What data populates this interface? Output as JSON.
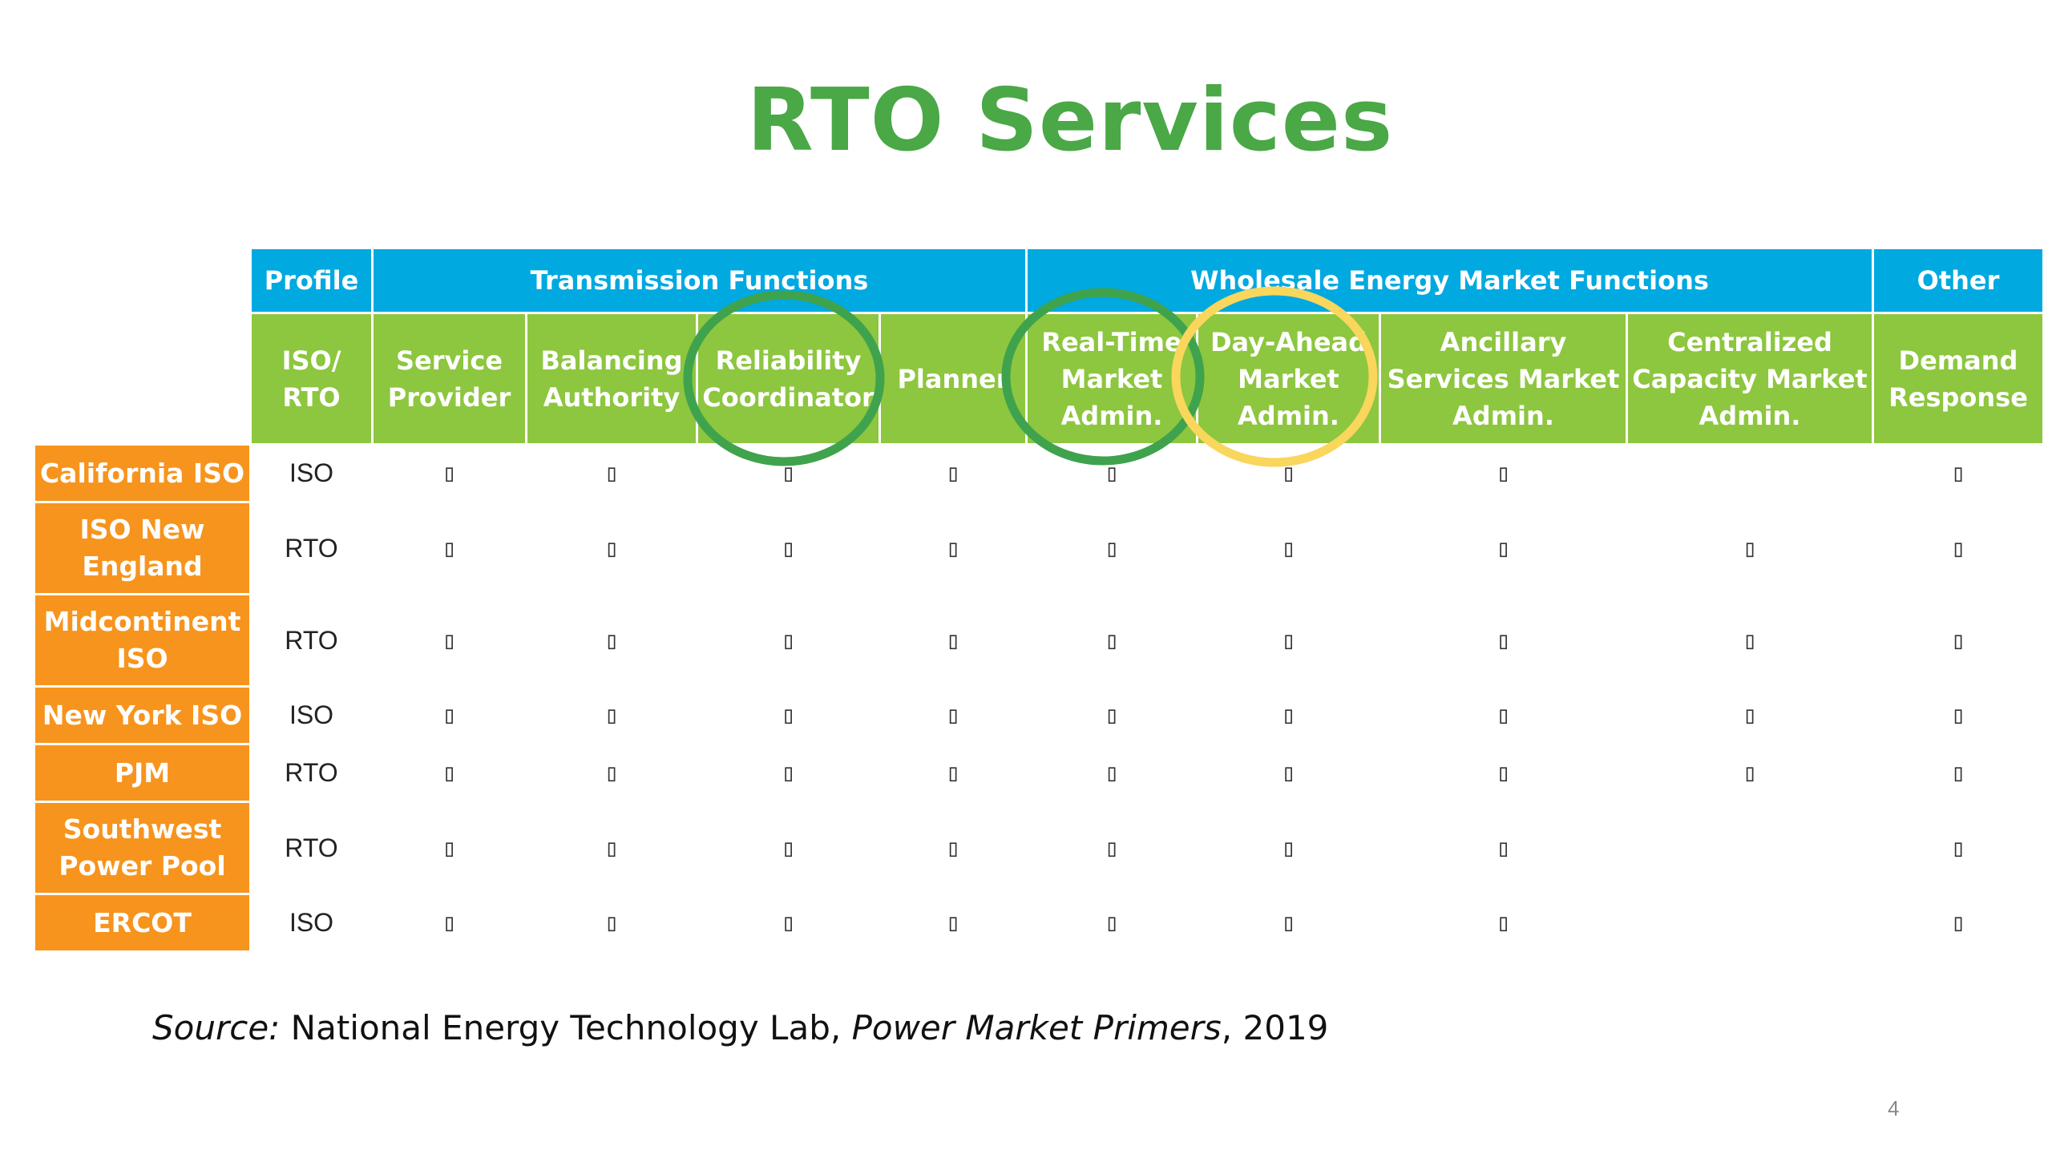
{
  "title": "RTO Services",
  "groups": [
    {
      "label": "Profile"
    },
    {
      "label": "Transmission Functions"
    },
    {
      "label": "Wholesale Energy Market Functions"
    },
    {
      "label": "Other"
    }
  ],
  "columns": [
    {
      "line1": "ISO/",
      "line2": "RTO",
      "line3": ""
    },
    {
      "line1": "Service",
      "line2": "Provider",
      "line3": ""
    },
    {
      "line1": "Balancing",
      "line2": "Authority",
      "line3": ""
    },
    {
      "line1": "Reliability",
      "line2": "Coordinator",
      "line3": ""
    },
    {
      "line1": "Planner",
      "line2": "",
      "line3": ""
    },
    {
      "line1": "Real-Time",
      "line2": "Market",
      "line3": "Admin."
    },
    {
      "line1": "Day-Ahead",
      "line2": "Market",
      "line3": "Admin."
    },
    {
      "line1": "Ancillary",
      "line2": "Services Market",
      "line3": "Admin."
    },
    {
      "line1": "Centralized",
      "line2": "Capacity Market",
      "line3": "Admin."
    },
    {
      "line1": "Demand",
      "line2": "Response",
      "line3": ""
    }
  ],
  "mark_glyph": "▯",
  "rows": [
    {
      "line1": "California ISO",
      "line2": "",
      "profile": "ISO",
      "c": [
        "▯",
        "▯",
        "▯",
        "▯",
        "▯",
        "▯",
        "▯",
        "",
        "▯"
      ]
    },
    {
      "line1": "ISO New",
      "line2": "England",
      "profile": "RTO",
      "c": [
        "▯",
        "▯",
        "▯",
        "▯",
        "▯",
        "▯",
        "▯",
        "▯",
        "▯"
      ]
    },
    {
      "line1": "Midcontinent",
      "line2": "ISO",
      "profile": "RTO",
      "c": [
        "▯",
        "▯",
        "▯",
        "▯",
        "▯",
        "▯",
        "▯",
        "▯",
        "▯"
      ]
    },
    {
      "line1": "New York ISO",
      "line2": "",
      "profile": "ISO",
      "c": [
        "▯",
        "▯",
        "▯",
        "▯",
        "▯",
        "▯",
        "▯",
        "▯",
        "▯"
      ]
    },
    {
      "line1": "PJM",
      "line2": "",
      "profile": "RTO",
      "c": [
        "▯",
        "▯",
        "▯",
        "▯",
        "▯",
        "▯",
        "▯",
        "▯",
        "▯"
      ]
    },
    {
      "line1": "Southwest",
      "line2": "Power Pool",
      "profile": "RTO",
      "c": [
        "▯",
        "▯",
        "▯",
        "▯",
        "▯",
        "▯",
        "▯",
        "",
        "▯"
      ]
    },
    {
      "line1": "ERCOT",
      "line2": "",
      "profile": "ISO",
      "c": [
        "▯",
        "▯",
        "▯",
        "▯",
        "▯",
        "▯",
        "▯",
        "",
        "▯"
      ]
    }
  ],
  "source": {
    "label": "Source:",
    "org": " National Energy Technology Lab, ",
    "publication": "Power Market Primers",
    "year": ", 2019"
  },
  "page_number": "4",
  "colors": {
    "title": "#4aa846",
    "group_header": "#00a9e0",
    "column_header": "#8dc63f",
    "row_header": "#f7941d",
    "circle_green": "#3fa34d",
    "circle_yellow": "#f9d65c"
  }
}
